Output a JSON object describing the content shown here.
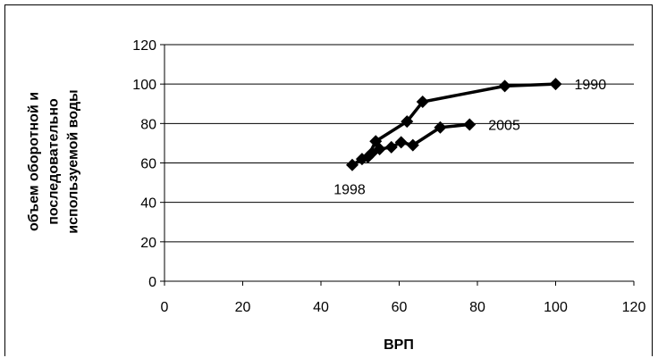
{
  "chart_data": {
    "type": "scatter",
    "title": "",
    "xlabel": "ВРП",
    "ylabel_lines": [
      "объем оборотной и",
      "последовательно",
      "используемой воды"
    ],
    "xlim": [
      0,
      120
    ],
    "ylim": [
      0,
      120
    ],
    "x_ticks": [
      "0",
      "20",
      "40",
      "60",
      "80",
      "100",
      "120"
    ],
    "y_ticks": [
      "0",
      "20",
      "40",
      "60",
      "80",
      "100",
      "120"
    ],
    "grid": "horizontal",
    "legend": "none",
    "line_color": "#000000",
    "marker": "diamond",
    "series": [
      {
        "name": "",
        "points": [
          {
            "x": 100,
            "y": 100
          },
          {
            "x": 87,
            "y": 99
          },
          {
            "x": 66,
            "y": 91
          },
          {
            "x": 62,
            "y": 81
          },
          {
            "x": 54,
            "y": 71
          },
          {
            "x": 52,
            "y": 63
          },
          {
            "x": 48,
            "y": 59
          },
          {
            "x": 50.5,
            "y": 62
          },
          {
            "x": 53,
            "y": 65
          },
          {
            "x": 55,
            "y": 67
          },
          {
            "x": 58,
            "y": 68
          },
          {
            "x": 60.5,
            "y": 70.5
          },
          {
            "x": 63.5,
            "y": 69
          },
          {
            "x": 70.5,
            "y": 78
          },
          {
            "x": 78,
            "y": 79.5
          }
        ]
      }
    ],
    "annotations": [
      {
        "text": "1990",
        "x": 100,
        "y": 100
      },
      {
        "text": "2005",
        "x": 78,
        "y": 79.5
      },
      {
        "text": "1998",
        "x": 48,
        "y": 59
      }
    ]
  }
}
